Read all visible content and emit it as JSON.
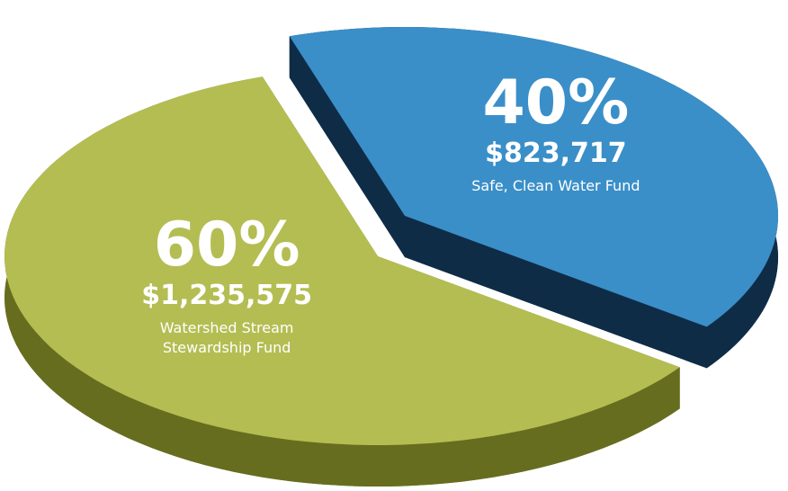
{
  "chart_data": {
    "type": "pie",
    "categories": [
      "Watershed Stream Stewardship Fund",
      "Safe, Clean Water Fund"
    ],
    "values": [
      60,
      40
    ],
    "value_labels": [
      "60%",
      "40%"
    ],
    "amounts": [
      1235575,
      823717
    ],
    "amount_labels": [
      "$1,235,575",
      "$823,717"
    ],
    "colors": [
      "#b4bd52",
      "#3a8fc8"
    ],
    "side_colors": [
      "#676d1f",
      "#0f2c47"
    ],
    "exploded": [
      false,
      true
    ]
  }
}
